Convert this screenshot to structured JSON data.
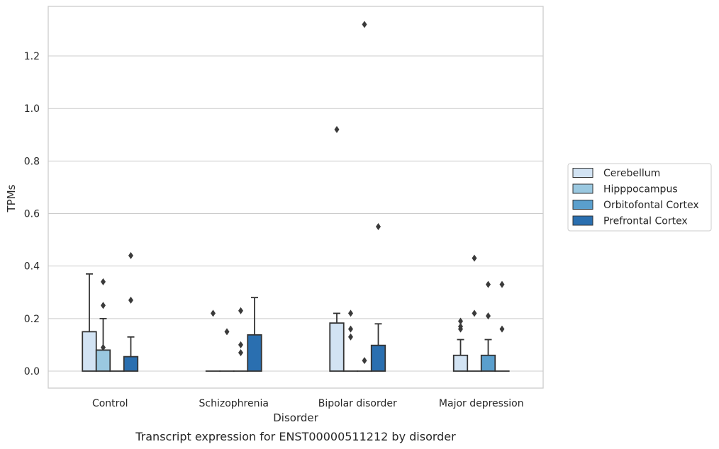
{
  "caption": "Transcript expression for ENST00000511212 by disorder",
  "chart_data": {
    "type": "bar",
    "xlabel": "Disorder",
    "ylabel": "TPMs",
    "ylim": [
      -0.065,
      1.39
    ],
    "yticks": [
      "0.0",
      "0.2",
      "0.4",
      "0.6",
      "0.8",
      "1.0",
      "1.2"
    ],
    "grid": true,
    "legend_position": "right",
    "categories": [
      "Control",
      "Schizophrenia",
      "Bipolar disorder",
      "Major depression"
    ],
    "series": [
      {
        "name": "Cerebellum",
        "color": "#d2e3f3",
        "values": [
          0.15,
          0.0,
          0.183,
          0.06
        ],
        "error_upper": [
          0.37,
          0.0,
          0.22,
          0.12
        ],
        "outliers": [
          [],
          [
            0.22
          ],
          [
            0.92
          ],
          [
            0.19,
            0.17,
            0.16
          ]
        ]
      },
      {
        "name": "Hipppocampus",
        "color": "#9ac8e0",
        "values": [
          0.08,
          0.0,
          0.0,
          0.0
        ],
        "error_upper": [
          0.2,
          0.0,
          0.0,
          0.0
        ],
        "outliers": [
          [
            0.34,
            0.25,
            0.09
          ],
          [
            0.15
          ],
          [
            0.22,
            0.16,
            0.13
          ],
          [
            0.43,
            0.22
          ]
        ]
      },
      {
        "name": "Orbitofontal Cortex",
        "color": "#5a9fcd",
        "values": [
          0.0,
          0.0,
          0.0,
          0.06
        ],
        "error_upper": [
          0.0,
          0.0,
          0.0,
          0.12
        ],
        "outliers": [
          [],
          [
            0.23,
            0.1,
            0.07
          ],
          [
            1.32,
            0.04
          ],
          [
            0.33,
            0.21
          ]
        ]
      },
      {
        "name": "Prefrontal Cortex",
        "color": "#2a6fb0",
        "values": [
          0.055,
          0.138,
          0.098,
          0.0
        ],
        "error_upper": [
          0.13,
          0.28,
          0.18,
          0.0
        ],
        "outliers": [
          [
            0.44,
            0.27
          ],
          [],
          [
            0.55
          ],
          [
            0.33,
            0.16
          ]
        ]
      }
    ]
  }
}
